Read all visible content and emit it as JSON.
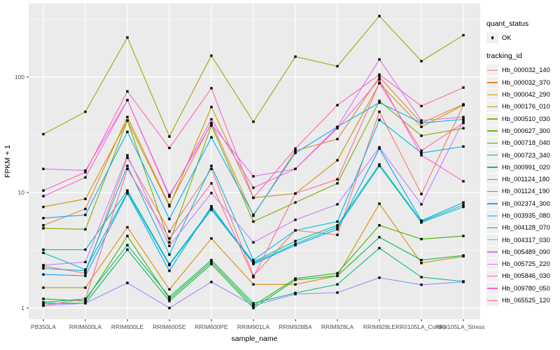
{
  "figure": {
    "x_axis": {
      "label": "sample_name",
      "tick_label_color": "#4d4d4d"
    },
    "y_axis": {
      "label": "FPKM + 1",
      "ticks": [
        "100",
        "10",
        "1"
      ],
      "tick_values": [
        100,
        10,
        1
      ],
      "tick_label_color": "#4d4d4d"
    },
    "panel": {
      "background": "#ebebeb",
      "major_grid": "#ffffff",
      "minor_grid": "#ffffff"
    },
    "legend": {
      "quant_status": {
        "title": "quant_status",
        "items": [
          {
            "label": "OK",
            "marker": "black-square"
          }
        ]
      },
      "tracking_id": {
        "title": "tracking_id"
      }
    }
  },
  "chart_data": {
    "type": "line",
    "title": "",
    "xlabel": "sample_name",
    "ylabel": "FPKM + 1",
    "yscale": "log10",
    "ylim": [
      1,
      430
    ],
    "grid": true,
    "legend_position": "right",
    "point_marker": "black-square",
    "x": [
      "PB350LA",
      "RRIM600LA",
      "RRIM600LE",
      "RRIM600SE",
      "RRIM600PE",
      "RRIM901LA",
      "RRIM928BA",
      "RRIM928LA",
      "RRIM928LE",
      "RRII105LA_Control",
      "RRII105LA_Stressed"
    ],
    "series": [
      {
        "name": "Hb_000032_140",
        "color": "#F8766D",
        "values": [
          2.3,
          2.0,
          20,
          4.6,
          16,
          1.9,
          4.7,
          4.3,
          50,
          9.7,
          57
        ]
      },
      {
        "name": "Hb_000032_370",
        "color": "#EA8331",
        "values": [
          5.2,
          7.2,
          45,
          7.8,
          40,
          6.3,
          23,
          29,
          100,
          40,
          58
        ]
      },
      {
        "name": "Hb_000042_290",
        "color": "#D89000",
        "values": [
          1.5,
          1.5,
          5.0,
          1.45,
          4.0,
          1.6,
          1.6,
          1.9,
          8.0,
          2.45,
          2.8
        ]
      },
      {
        "name": "Hb_000176_010",
        "color": "#C09B00",
        "values": [
          7.5,
          8.8,
          42,
          7.6,
          55,
          9.0,
          9.8,
          19,
          88,
          37,
          57
        ]
      },
      {
        "name": "Hb_000510_030",
        "color": "#A3A500",
        "values": [
          32,
          50,
          220,
          30.5,
          153,
          41,
          150,
          124,
          337,
          137,
          230
        ]
      },
      {
        "name": "Hb_000627_300",
        "color": "#7CAE00",
        "values": [
          4.9,
          4.8,
          42,
          3.7,
          38,
          5.6,
          8.2,
          12,
          62,
          31,
          36
        ]
      },
      {
        "name": "Hb_000718_040",
        "color": "#39B600",
        "values": [
          1.2,
          1.15,
          4.2,
          1.2,
          2.5,
          1.05,
          1.8,
          2.0,
          5.2,
          3.95,
          4.2
        ]
      },
      {
        "name": "Hb_000723_340",
        "color": "#00BB4E",
        "values": [
          1.1,
          1.1,
          3.2,
          1.15,
          2.4,
          1.0,
          1.75,
          1.9,
          4.1,
          2.6,
          2.85
        ]
      },
      {
        "name": "Hb_000991_020",
        "color": "#00BF7D",
        "values": [
          1.12,
          1.2,
          3.5,
          1.25,
          2.6,
          1.1,
          1.35,
          1.6,
          3.3,
          1.85,
          1.7
        ]
      },
      {
        "name": "Hb_001124_180",
        "color": "#00C1A3",
        "values": [
          3.2,
          3.2,
          10.4,
          2.4,
          7.3,
          2.5,
          3.8,
          5.2,
          17.5,
          5.6,
          7.8
        ]
      },
      {
        "name": "Hb_001124_190",
        "color": "#00BFC4",
        "values": [
          3.0,
          2.15,
          10.0,
          2.35,
          7.1,
          2.45,
          3.6,
          5.0,
          17.0,
          5.5,
          7.5
        ]
      },
      {
        "name": "Hb_002374_300",
        "color": "#00BAE0",
        "values": [
          2.2,
          2.1,
          17,
          2.9,
          17,
          2.6,
          4.7,
          5.6,
          42.5,
          22,
          25
        ]
      },
      {
        "name": "Hb_003935_080",
        "color": "#00B0F6",
        "values": [
          6.0,
          6.4,
          33.5,
          5.9,
          30,
          6.4,
          22,
          37,
          60,
          40,
          43
        ]
      },
      {
        "name": "Hb_004128_070",
        "color": "#00A5FF",
        "values": [
          1.95,
          1.9,
          9.8,
          2.1,
          7.6,
          2.4,
          3.5,
          4.8,
          24,
          5.7,
          8.2
        ]
      },
      {
        "name": "Hb_004317_030",
        "color": "#9590FF",
        "values": [
          1.05,
          1.1,
          1.65,
          1.0,
          1.68,
          1.05,
          1.32,
          1.36,
          1.83,
          1.59,
          1.68
        ]
      },
      {
        "name": "Hb_005489_090",
        "color": "#C77CFF",
        "values": [
          2.35,
          2.5,
          21,
          3.45,
          9.9,
          3.7,
          5.8,
          7.9,
          24.6,
          7.9,
          42
        ]
      },
      {
        "name": "Hb_005725_220",
        "color": "#E76BF3",
        "values": [
          16,
          15.5,
          63,
          9.5,
          39,
          13.8,
          16,
          37,
          142,
          42,
          45
        ]
      },
      {
        "name": "Hb_005846_030",
        "color": "#FA62DB",
        "values": [
          9.3,
          13.5,
          63,
          9.2,
          43,
          11,
          16,
          36,
          95,
          21,
          12.5
        ]
      },
      {
        "name": "Hb_009780_050",
        "color": "#FF62BC",
        "values": [
          10.4,
          15,
          75,
          24.3,
          80,
          9.0,
          24,
          57,
          105,
          56,
          81
        ]
      },
      {
        "name": "Hb_065525_120",
        "color": "#FF6A98",
        "values": [
          1.05,
          1.2,
          16,
          4.0,
          12,
          1.85,
          9.8,
          13,
          89,
          23,
          40
        ]
      }
    ]
  }
}
